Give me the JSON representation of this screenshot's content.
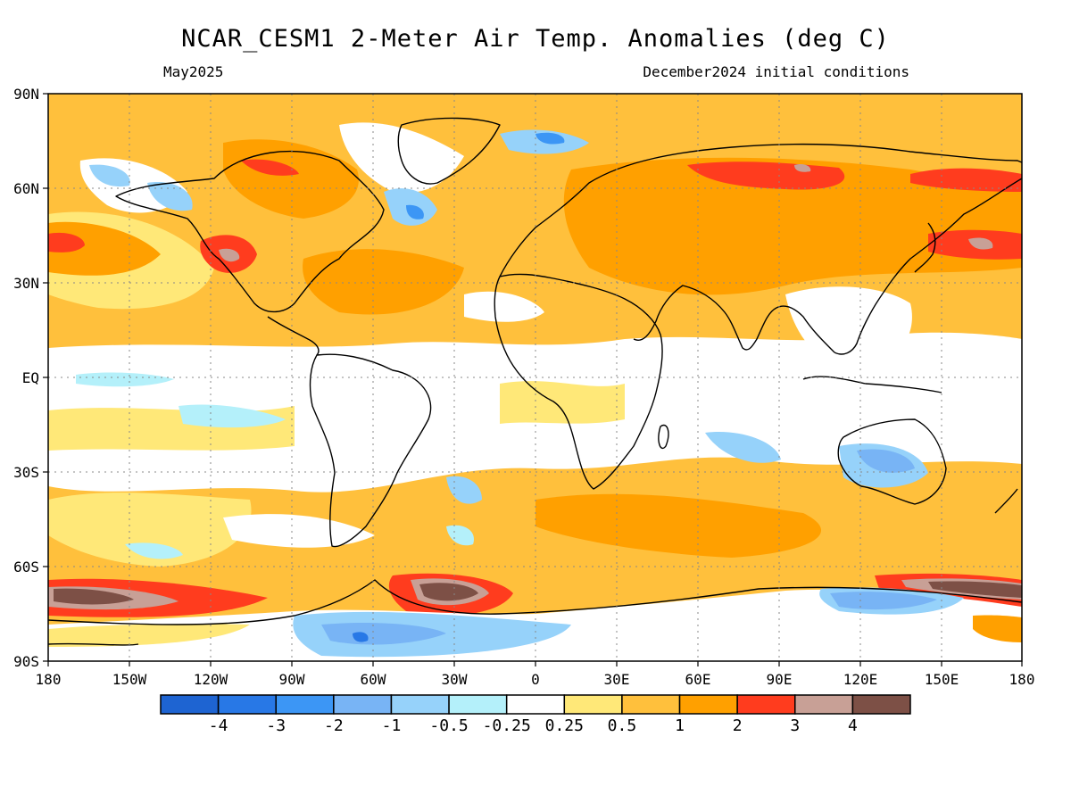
{
  "title": "NCAR_CESM1 2-Meter Air Temp. Anomalies (deg C)",
  "valid_month": "May2025",
  "initial_conditions": "December2024 initial conditions",
  "lat_labels": [
    "90N",
    "60N",
    "30N",
    "EQ",
    "30S",
    "60S",
    "90S"
  ],
  "lon_labels": [
    "180",
    "150W",
    "120W",
    "90W",
    "60W",
    "30W",
    "0",
    "30E",
    "60E",
    "90E",
    "120E",
    "150E",
    "180"
  ],
  "colorbar": {
    "colors": [
      "#1e64d2",
      "#2878e6",
      "#3c96f5",
      "#78b4f5",
      "#96d2fa",
      "#b4f0fa",
      "#ffffff",
      "#ffe878",
      "#ffc03c",
      "#ffa000",
      "#ff3c1e",
      "#c8a096",
      "#7d5046"
    ],
    "labels": [
      "-4",
      "-3",
      "-2",
      "-1",
      "-0.5",
      "-0.25",
      "0.25",
      "0.5",
      "1",
      "2",
      "3",
      "4"
    ]
  },
  "palette": {
    "warm_light": "#ffe878",
    "warm_mid": "#ffc03c",
    "warm_strong": "#ffa000",
    "hot": "#ff3c1e",
    "very_hot": "#c8a096",
    "extreme_hot": "#7d5046",
    "cool_light": "#b4f0fa",
    "cool_mid": "#96d2fa",
    "cool_strong": "#78b4f5",
    "cold": "#3c96f5",
    "very_cold": "#2878e6",
    "neutral": "#ffffff"
  }
}
